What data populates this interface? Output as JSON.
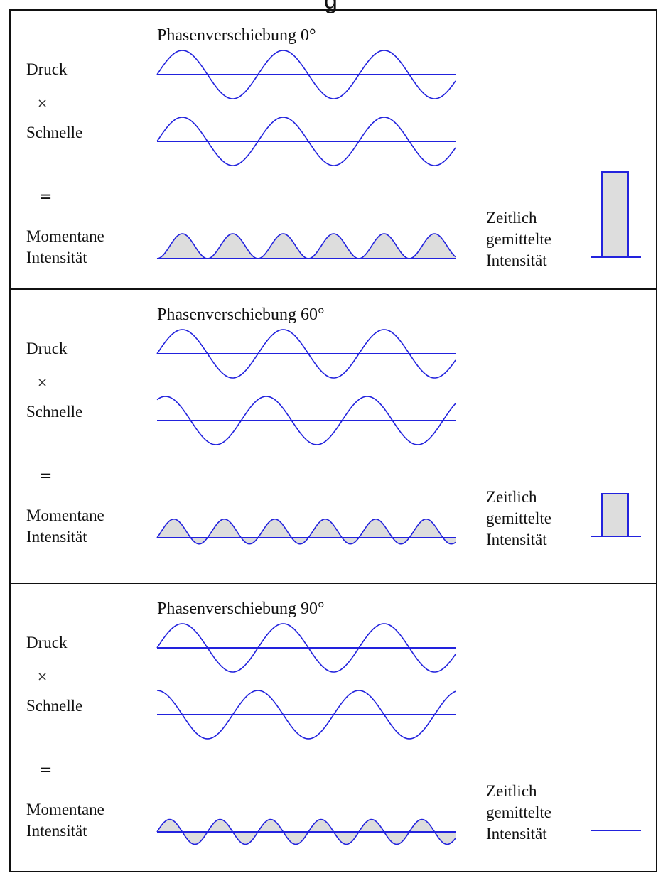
{
  "figure": {
    "cut_title": "g"
  },
  "colors": {
    "wave": "#2222dd",
    "fill": "#dddddd",
    "border": "#111111",
    "text": "#111111"
  },
  "labels": {
    "pressure": "Druck",
    "times": "×",
    "velocity": "Schnelle",
    "equals": "=",
    "instant_line1": "Momentane",
    "instant_line2": "Intensität",
    "average_line1": "Zeitlich",
    "average_line2": "gemittelte",
    "average_line3": "Intensität"
  },
  "panels": [
    {
      "title": "Phasenverschiebung 0°",
      "phase_shift_deg": 0,
      "mean_intensity": 1.0
    },
    {
      "title": "Phasenverschiebung 60°",
      "phase_shift_deg": 60,
      "mean_intensity": 0.5
    },
    {
      "title": "Phasenverschiebung 90°",
      "phase_shift_deg": 90,
      "mean_intensity": 0.0
    }
  ]
}
